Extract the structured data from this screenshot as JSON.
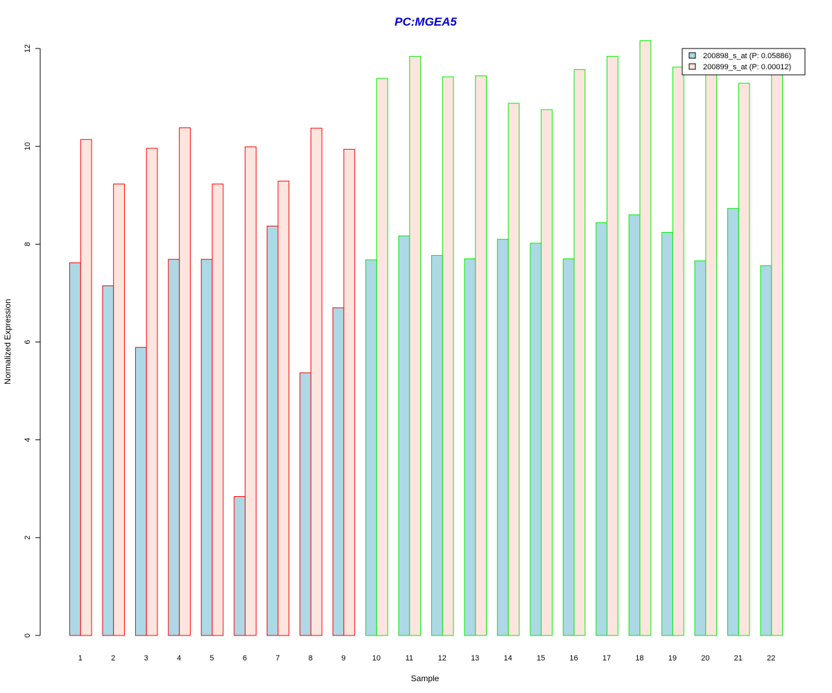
{
  "chart_data": {
    "type": "bar",
    "title": "PC:MGEA5",
    "xlabel": "Sample",
    "ylabel": "Normalized Expression",
    "ylim": [
      0,
      12
    ],
    "yticks": [
      "0",
      "2",
      "4",
      "6",
      "8",
      "10",
      "12"
    ],
    "categories": [
      "1",
      "2",
      "3",
      "4",
      "5",
      "6",
      "7",
      "8",
      "9",
      "10",
      "11",
      "12",
      "13",
      "14",
      "15",
      "16",
      "17",
      "18",
      "19",
      "20",
      "21",
      "22"
    ],
    "series": [
      {
        "name": "200898_s_at (P: 0.05886)",
        "fill": "#add8e6",
        "values": [
          7.62,
          7.15,
          5.89,
          7.69,
          7.69,
          2.84,
          8.37,
          5.37,
          6.7,
          7.68,
          8.17,
          7.77,
          7.7,
          8.1,
          8.02,
          7.7,
          8.44,
          8.6,
          8.24,
          7.66,
          8.73,
          7.56
        ]
      },
      {
        "name": "200899_s_at (P: 0.00012)",
        "fill": "#fce5de",
        "values": [
          10.14,
          9.23,
          9.96,
          10.38,
          9.23,
          9.99,
          9.29,
          10.37,
          9.94,
          11.39,
          11.84,
          11.42,
          11.44,
          10.88,
          10.75,
          11.57,
          11.84,
          12.16,
          11.62,
          11.55,
          11.29,
          11.55
        ]
      }
    ],
    "group_border_colors": [
      "#ff0000",
      "#ff0000",
      "#ff0000",
      "#ff0000",
      "#ff0000",
      "#ff0000",
      "#ff0000",
      "#ff0000",
      "#ff0000",
      "#00ee00",
      "#00ee00",
      "#00ee00",
      "#00ee00",
      "#00ee00",
      "#00ee00",
      "#00ee00",
      "#00ee00",
      "#00ee00",
      "#00ee00",
      "#00ee00",
      "#00ee00",
      "#00ee00"
    ],
    "title_color": "#0000cc",
    "legend_position": "top-right",
    "grid": false
  }
}
